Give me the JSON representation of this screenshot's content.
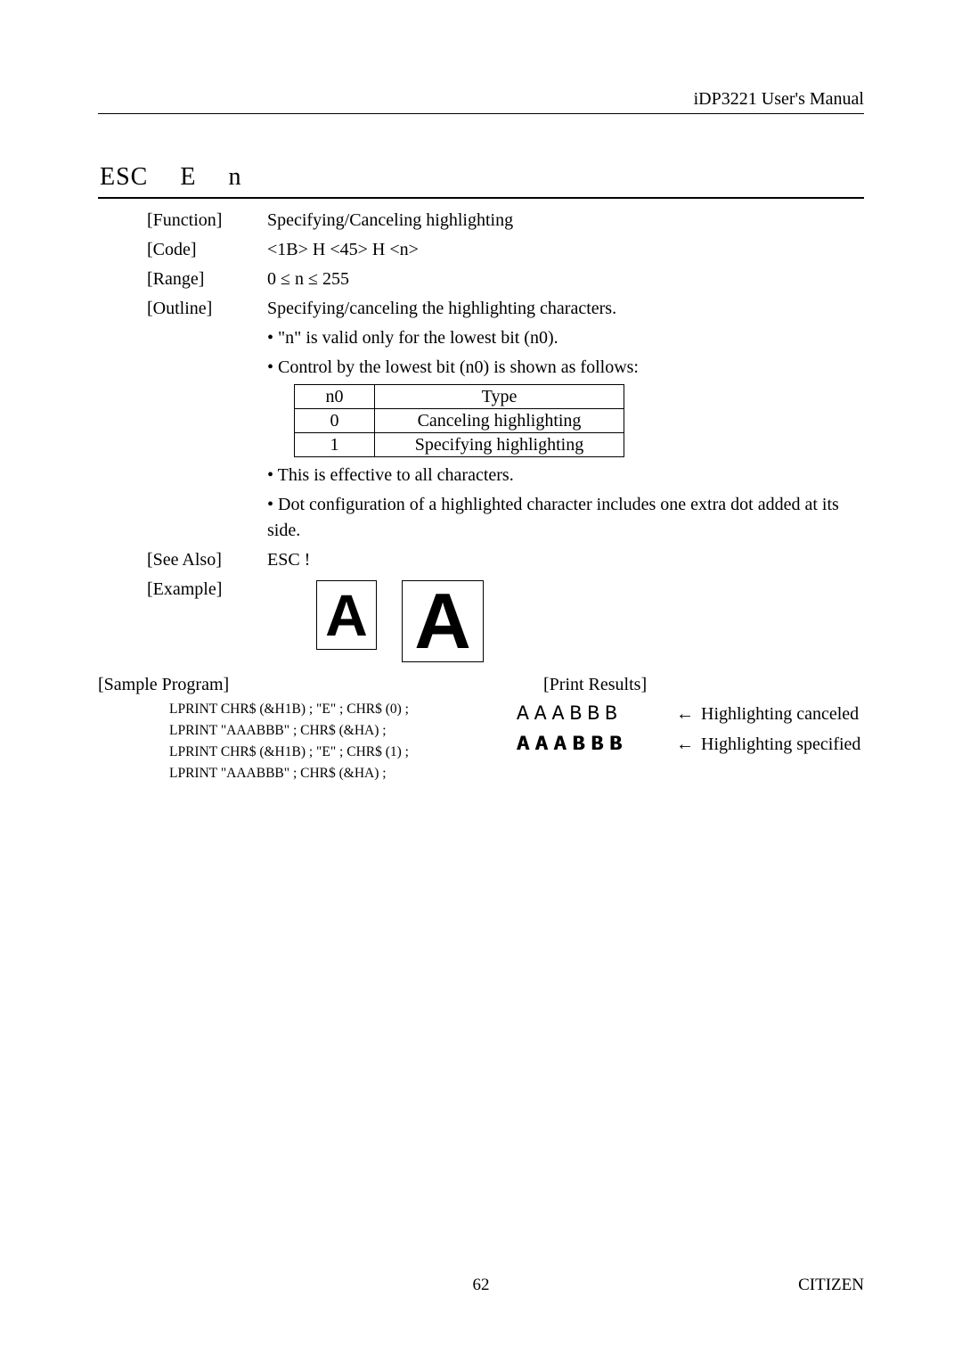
{
  "header": {
    "manual": "iDP3221 User's Manual"
  },
  "title": {
    "parts": [
      "ESC",
      "E",
      "n"
    ]
  },
  "rows": {
    "function": {
      "label": "[Function]",
      "value": "Specifying/Canceling highlighting"
    },
    "code": {
      "label": "[Code]",
      "value": "<1B> H <45> H <n>"
    },
    "range": {
      "label": "[Range]",
      "value": "0 ≤ n ≤ 255"
    },
    "outline": {
      "label": "[Outline]",
      "value": "Specifying/canceling the highlighting characters."
    }
  },
  "bullets": {
    "b1": "• \"n\" is valid only for the lowest bit (n0).",
    "b2": "• Control by the lowest bit (n0) is shown as follows:",
    "b3": "• This is effective to all characters.",
    "b4": "• Dot configuration of a highlighted character includes one extra dot added at its side."
  },
  "table": {
    "head": {
      "c1": "n0",
      "c2": "Type"
    },
    "r1": {
      "c1": "0",
      "c2": "Canceling highlighting"
    },
    "r2": {
      "c1": "1",
      "c2": "Specifying highlighting"
    }
  },
  "seealso": {
    "label": "[See Also]",
    "value": "ESC !"
  },
  "example": {
    "label": "[Example]",
    "glyph_small": "A",
    "glyph_big": "A"
  },
  "sample": {
    "title": "[Sample Program]",
    "l1": "LPRINT CHR$ (&H1B) ; \"E\" ; CHR$ (0) ;",
    "l2": "LPRINT \"AAABBB\" ; CHR$ (&HA) ;",
    "l3": "LPRINT CHR$ (&H1B) ; \"E\" ; CHR$ (1) ;",
    "l4": "LPRINT \"AAABBB\" ; CHR$ (&HA) ;"
  },
  "print": {
    "title": "[Print Results]",
    "r1": {
      "text": "AAABBB",
      "arrow": "←",
      "desc": "Highlighting canceled"
    },
    "r2": {
      "text": "AAABBB",
      "arrow": "←",
      "desc": "Highlighting specified"
    }
  },
  "footer": {
    "page": "62",
    "brand": "CITIZEN"
  }
}
